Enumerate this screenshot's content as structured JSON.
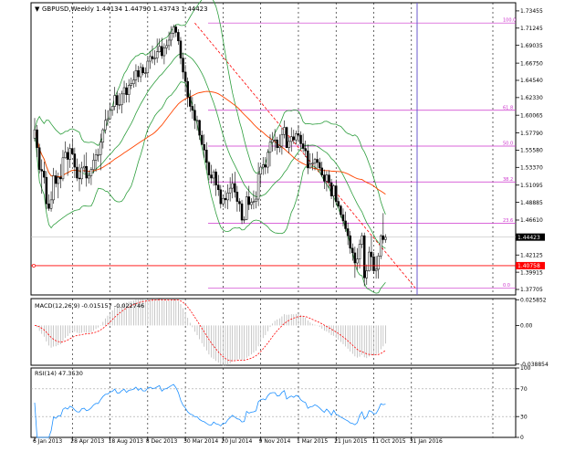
{
  "chart_data": [
    {
      "type": "candlestick",
      "panel": "main",
      "title": "GBPUSD,Weekly  1.44134 1.44790 1.43743 1.44423",
      "symbol": "GBPUSD",
      "timeframe": "Weekly",
      "ohlc_last": {
        "open": 1.44134,
        "high": 1.4479,
        "low": 1.43743,
        "close": 1.44423
      },
      "ylim": [
        1.37,
        1.745
      ],
      "y_ticks": [
        "1.73455",
        "1.71245",
        "1.69035",
        "1.66750",
        "1.64540",
        "1.62330",
        "1.60065",
        "1.57790",
        "1.55580",
        "1.53370",
        "1.51095",
        "1.48885",
        "1.46610",
        "1.44400",
        "1.42125",
        "1.39915",
        "1.37705"
      ],
      "current_price_label": "1.44423",
      "current_price": 1.44423,
      "hline_price": 1.40758,
      "hline_label": "1.40758",
      "hline_color": "#ff0000",
      "candles": [
        [
          1.571,
          1.597,
          1.567,
          1.582
        ],
        [
          1.582,
          1.588,
          1.547,
          1.559
        ],
        [
          1.559,
          1.564,
          1.526,
          1.531
        ],
        [
          1.531,
          1.544,
          1.5,
          1.529
        ],
        [
          1.529,
          1.541,
          1.513,
          1.521
        ],
        [
          1.521,
          1.529,
          1.48,
          1.487
        ],
        [
          1.487,
          1.499,
          1.478,
          1.481
        ],
        [
          1.481,
          1.503,
          1.477,
          1.492
        ],
        [
          1.492,
          1.533,
          1.487,
          1.523
        ],
        [
          1.523,
          1.53,
          1.508,
          1.513
        ],
        [
          1.513,
          1.527,
          1.494,
          1.521
        ],
        [
          1.521,
          1.538,
          1.507,
          1.519
        ],
        [
          1.519,
          1.556,
          1.516,
          1.546
        ],
        [
          1.546,
          1.567,
          1.545,
          1.553
        ],
        [
          1.553,
          1.56,
          1.523,
          1.544
        ],
        [
          1.544,
          1.564,
          1.533,
          1.558
        ],
        [
          1.558,
          1.571,
          1.55,
          1.551
        ],
        [
          1.551,
          1.559,
          1.52,
          1.534
        ],
        [
          1.534,
          1.545,
          1.516,
          1.52
        ],
        [
          1.52,
          1.538,
          1.503,
          1.519
        ],
        [
          1.519,
          1.541,
          1.512,
          1.533
        ],
        [
          1.533,
          1.55,
          1.527,
          1.535
        ],
        [
          1.535,
          1.553,
          1.509,
          1.52
        ],
        [
          1.52,
          1.529,
          1.513,
          1.523
        ],
        [
          1.523,
          1.534,
          1.511,
          1.531
        ],
        [
          1.531,
          1.552,
          1.526,
          1.543
        ],
        [
          1.543,
          1.557,
          1.528,
          1.55
        ],
        [
          1.55,
          1.558,
          1.541,
          1.55
        ],
        [
          1.55,
          1.577,
          1.53,
          1.566
        ],
        [
          1.566,
          1.584,
          1.558,
          1.582
        ],
        [
          1.582,
          1.608,
          1.577,
          1.594
        ],
        [
          1.594,
          1.607,
          1.587,
          1.596
        ],
        [
          1.596,
          1.617,
          1.595,
          1.607
        ],
        [
          1.607,
          1.612,
          1.6,
          1.612
        ],
        [
          1.612,
          1.637,
          1.607,
          1.626
        ],
        [
          1.626,
          1.631,
          1.603,
          1.614
        ],
        [
          1.614,
          1.629,
          1.608,
          1.614
        ],
        [
          1.614,
          1.632,
          1.603,
          1.628
        ],
        [
          1.628,
          1.645,
          1.616,
          1.636
        ],
        [
          1.636,
          1.642,
          1.617,
          1.627
        ],
        [
          1.627,
          1.647,
          1.617,
          1.639
        ],
        [
          1.639,
          1.649,
          1.634,
          1.641
        ],
        [
          1.641,
          1.657,
          1.636,
          1.646
        ],
        [
          1.646,
          1.666,
          1.637,
          1.658
        ],
        [
          1.658,
          1.664,
          1.643,
          1.65
        ],
        [
          1.65,
          1.668,
          1.643,
          1.662
        ],
        [
          1.662,
          1.666,
          1.652,
          1.655
        ],
        [
          1.655,
          1.662,
          1.649,
          1.655
        ],
        [
          1.655,
          1.677,
          1.649,
          1.67
        ],
        [
          1.67,
          1.683,
          1.66,
          1.676
        ],
        [
          1.676,
          1.69,
          1.667,
          1.673
        ],
        [
          1.673,
          1.684,
          1.665,
          1.674
        ],
        [
          1.674,
          1.699,
          1.668,
          1.682
        ],
        [
          1.682,
          1.699,
          1.681,
          1.689
        ],
        [
          1.689,
          1.7,
          1.673,
          1.677
        ],
        [
          1.677,
          1.693,
          1.666,
          1.687
        ],
        [
          1.687,
          1.698,
          1.679,
          1.69
        ],
        [
          1.69,
          1.708,
          1.684,
          1.697
        ],
        [
          1.697,
          1.715,
          1.689,
          1.706
        ],
        [
          1.706,
          1.717,
          1.7,
          1.714
        ],
        [
          1.714,
          1.717,
          1.701,
          1.707
        ],
        [
          1.707,
          1.711,
          1.691,
          1.696
        ],
        [
          1.696,
          1.701,
          1.666,
          1.674
        ],
        [
          1.674,
          1.681,
          1.647,
          1.656
        ],
        [
          1.656,
          1.665,
          1.63,
          1.644
        ],
        [
          1.644,
          1.649,
          1.611,
          1.624
        ],
        [
          1.624,
          1.633,
          1.605,
          1.612
        ],
        [
          1.612,
          1.624,
          1.596,
          1.607
        ],
        [
          1.607,
          1.615,
          1.583,
          1.594
        ],
        [
          1.594,
          1.6,
          1.581,
          1.594
        ],
        [
          1.594,
          1.595,
          1.569,
          1.575
        ],
        [
          1.575,
          1.581,
          1.563,
          1.563
        ],
        [
          1.563,
          1.576,
          1.546,
          1.556
        ],
        [
          1.556,
          1.566,
          1.53,
          1.54
        ],
        [
          1.54,
          1.542,
          1.517,
          1.524
        ],
        [
          1.524,
          1.537,
          1.513,
          1.52
        ],
        [
          1.52,
          1.531,
          1.51,
          1.528
        ],
        [
          1.528,
          1.532,
          1.497,
          1.511
        ],
        [
          1.511,
          1.524,
          1.497,
          1.505
        ],
        [
          1.505,
          1.511,
          1.481,
          1.487
        ],
        [
          1.487,
          1.499,
          1.483,
          1.494
        ],
        [
          1.494,
          1.504,
          1.481,
          1.492
        ],
        [
          1.492,
          1.512,
          1.48,
          1.501
        ],
        [
          1.501,
          1.521,
          1.49,
          1.507
        ],
        [
          1.507,
          1.526,
          1.494,
          1.513
        ],
        [
          1.513,
          1.528,
          1.495,
          1.502
        ],
        [
          1.502,
          1.51,
          1.477,
          1.49
        ],
        [
          1.49,
          1.494,
          1.477,
          1.487
        ],
        [
          1.487,
          1.492,
          1.461,
          1.466
        ],
        [
          1.466,
          1.471,
          1.462,
          1.467
        ],
        [
          1.467,
          1.503,
          1.466,
          1.496
        ],
        [
          1.496,
          1.51,
          1.479,
          1.486
        ],
        [
          1.486,
          1.494,
          1.48,
          1.489
        ],
        [
          1.489,
          1.504,
          1.48,
          1.49
        ],
        [
          1.49,
          1.503,
          1.481,
          1.493
        ],
        [
          1.493,
          1.54,
          1.484,
          1.525
        ],
        [
          1.525,
          1.537,
          1.511,
          1.534
        ],
        [
          1.534,
          1.547,
          1.524,
          1.537
        ],
        [
          1.537,
          1.547,
          1.525,
          1.534
        ],
        [
          1.534,
          1.557,
          1.526,
          1.553
        ],
        [
          1.553,
          1.576,
          1.535,
          1.566
        ],
        [
          1.566,
          1.579,
          1.554,
          1.569
        ],
        [
          1.569,
          1.583,
          1.555,
          1.569
        ],
        [
          1.569,
          1.573,
          1.55,
          1.559
        ],
        [
          1.559,
          1.576,
          1.553,
          1.561
        ],
        [
          1.561,
          1.585,
          1.55,
          1.576
        ],
        [
          1.576,
          1.594,
          1.571,
          1.585
        ],
        [
          1.585,
          1.586,
          1.559,
          1.559
        ],
        [
          1.559,
          1.573,
          1.552,
          1.567
        ],
        [
          1.567,
          1.585,
          1.554,
          1.573
        ],
        [
          1.573,
          1.582,
          1.564,
          1.569
        ],
        [
          1.569,
          1.581,
          1.563,
          1.577
        ],
        [
          1.577,
          1.588,
          1.566,
          1.575
        ],
        [
          1.575,
          1.58,
          1.557,
          1.564
        ],
        [
          1.564,
          1.577,
          1.553,
          1.558
        ],
        [
          1.558,
          1.568,
          1.547,
          1.555
        ],
        [
          1.555,
          1.563,
          1.525,
          1.533
        ],
        [
          1.533,
          1.552,
          1.532,
          1.538
        ],
        [
          1.538,
          1.552,
          1.53,
          1.539
        ],
        [
          1.539,
          1.546,
          1.53,
          1.544
        ],
        [
          1.544,
          1.554,
          1.532,
          1.54
        ],
        [
          1.54,
          1.546,
          1.529,
          1.533
        ],
        [
          1.533,
          1.541,
          1.521,
          1.524
        ],
        [
          1.524,
          1.531,
          1.506,
          1.516
        ],
        [
          1.516,
          1.529,
          1.503,
          1.524
        ],
        [
          1.524,
          1.53,
          1.507,
          1.514
        ],
        [
          1.514,
          1.519,
          1.493,
          1.497
        ],
        [
          1.497,
          1.512,
          1.482,
          1.51
        ],
        [
          1.51,
          1.518,
          1.487,
          1.49
        ],
        [
          1.49,
          1.495,
          1.481,
          1.484
        ],
        [
          1.484,
          1.486,
          1.469,
          1.473
        ],
        [
          1.473,
          1.481,
          1.458,
          1.465
        ],
        [
          1.465,
          1.477,
          1.451,
          1.455
        ],
        [
          1.455,
          1.463,
          1.434,
          1.446
        ],
        [
          1.446,
          1.452,
          1.423,
          1.43
        ],
        [
          1.43,
          1.436,
          1.414,
          1.424
        ],
        [
          1.424,
          1.432,
          1.392,
          1.411
        ],
        [
          1.411,
          1.43,
          1.402,
          1.416
        ],
        [
          1.416,
          1.441,
          1.404,
          1.435
        ],
        [
          1.435,
          1.45,
          1.43,
          1.446
        ],
        [
          1.446,
          1.45,
          1.381,
          1.392
        ],
        [
          1.392,
          1.409,
          1.383,
          1.401
        ],
        [
          1.401,
          1.432,
          1.4,
          1.425
        ],
        [
          1.425,
          1.446,
          1.401,
          1.419
        ],
        [
          1.419,
          1.425,
          1.397,
          1.401
        ],
        [
          1.401,
          1.42,
          1.391,
          1.403
        ],
        [
          1.403,
          1.424,
          1.391,
          1.42
        ],
        [
          1.42,
          1.448,
          1.416,
          1.446
        ],
        [
          1.446,
          1.475,
          1.436,
          1.441
        ],
        [
          1.441,
          1.448,
          1.437,
          1.444
        ]
      ],
      "x_labels": [
        "6 Jan 2013",
        "28 Apr 2013",
        "18 Aug 2013",
        "8 Dec 2013",
        "30 Mar 2014",
        "20 Jul 2014",
        "9 Nov 2014",
        "1 Mar 2015",
        "21 Jun 2015",
        "11 Oct 2015",
        "31 Jan 2016"
      ],
      "x_label_index": [
        0,
        16,
        32,
        48,
        64,
        80,
        96,
        112,
        128,
        144,
        160
      ],
      "fibonacci": {
        "levels": [
          {
            "label": "100.0",
            "price": 1.719
          },
          {
            "label": "61.8",
            "price": 1.607
          },
          {
            "label": "50.0",
            "price": 1.561
          },
          {
            "label": "38.2",
            "price": 1.515
          },
          {
            "label": "23.6",
            "price": 1.462
          },
          {
            "label": "0.0",
            "price": 1.379
          }
        ],
        "color": "#cc33cc",
        "from_index": 68,
        "to_index": 157
      },
      "series_colors": {
        "moving_average": "#ff4500",
        "bollinger": "#2e9e3e",
        "candles": "#000000",
        "vertical_line": "#6a5acd",
        "fib_trend": "#ff0000"
      }
    },
    {
      "type": "macd",
      "panel": "indicator",
      "title": "MACD(12,26,9) -0.015157 -0.022746",
      "value_main": -0.015157,
      "value_signal": -0.022746,
      "ylim": [
        -0.04,
        0.027
      ],
      "y_ticks": [
        "0.025852",
        "0.00",
        "-0.038854"
      ],
      "histogram_color": "#b0b0b0",
      "signal_color": "#ff0000"
    },
    {
      "type": "line",
      "panel": "indicator",
      "title": "RSI(14) 47.3530",
      "value": 47.353,
      "ylim": [
        0,
        100
      ],
      "y_ticks": [
        "100",
        "70",
        "30",
        "0"
      ],
      "levels": [
        70,
        30
      ],
      "line_color": "#1e90ff"
    }
  ]
}
